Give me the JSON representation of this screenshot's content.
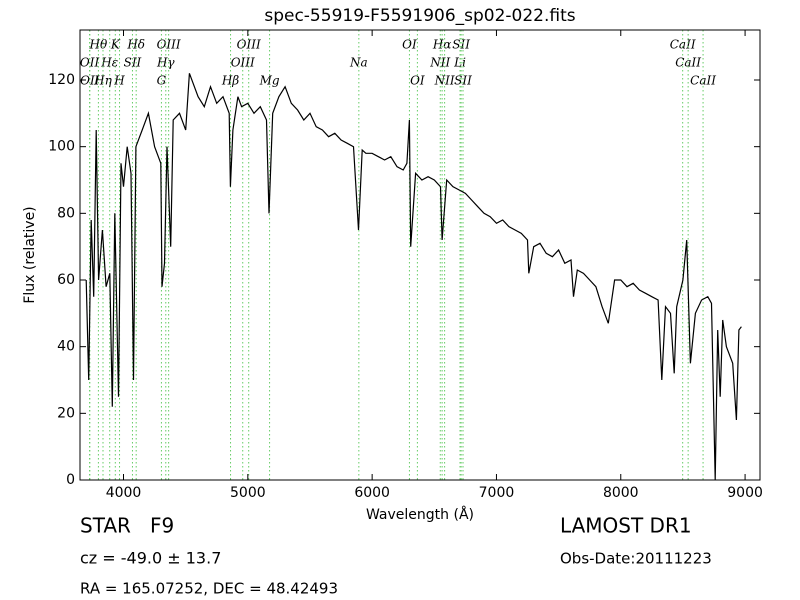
{
  "chart_data": {
    "type": "line",
    "title": "spec-55919-F5591906_sp02-022.fits",
    "x_label": "Wavelength (Å)",
    "y_label": "Flux (relative)",
    "xlim": [
      3650,
      9120
    ],
    "ylim": [
      0,
      135
    ],
    "xticks": [
      4000,
      5000,
      6000,
      7000,
      8000,
      9000
    ],
    "yticks": [
      0,
      20,
      40,
      60,
      80,
      100,
      120
    ],
    "color": "#000000",
    "line_color": "#66cc66",
    "x": [
      3700,
      3720,
      3740,
      3760,
      3780,
      3800,
      3830,
      3860,
      3890,
      3910,
      3930,
      3960,
      3980,
      4000,
      4030,
      4060,
      4080,
      4100,
      4150,
      4200,
      4250,
      4300,
      4310,
      4330,
      4350,
      4380,
      4400,
      4450,
      4500,
      4530,
      4600,
      4650,
      4700,
      4750,
      4800,
      4850,
      4860,
      4880,
      4920,
      4950,
      5000,
      5050,
      5100,
      5150,
      5170,
      5200,
      5250,
      5300,
      5350,
      5400,
      5450,
      5500,
      5550,
      5600,
      5650,
      5700,
      5750,
      5800,
      5850,
      5890,
      5920,
      5950,
      6000,
      6050,
      6100,
      6150,
      6200,
      6250,
      6280,
      6300,
      6310,
      6350,
      6400,
      6450,
      6500,
      6550,
      6563,
      6600,
      6650,
      6700,
      6750,
      6800,
      6850,
      6900,
      6950,
      7000,
      7050,
      7100,
      7150,
      7200,
      7250,
      7260,
      7300,
      7350,
      7400,
      7450,
      7500,
      7550,
      7600,
      7620,
      7650,
      7700,
      7750,
      7800,
      7850,
      7900,
      7950,
      8000,
      8050,
      8100,
      8150,
      8200,
      8250,
      8300,
      8330,
      8360,
      8400,
      8430,
      8450,
      8500,
      8530,
      8560,
      8600,
      8650,
      8700,
      8730,
      8760,
      8780,
      8800,
      8820,
      8850,
      8900,
      8930,
      8950,
      8970
    ],
    "values": [
      60,
      30,
      78,
      55,
      105,
      60,
      75,
      58,
      62,
      22,
      80,
      25,
      95,
      88,
      100,
      92,
      30,
      100,
      105,
      110,
      100,
      95,
      58,
      65,
      100,
      70,
      108,
      110,
      105,
      122,
      115,
      112,
      118,
      113,
      115,
      110,
      88,
      105,
      115,
      112,
      113,
      110,
      112,
      108,
      80,
      110,
      115,
      118,
      113,
      111,
      108,
      110,
      106,
      105,
      103,
      104,
      102,
      101,
      100,
      75,
      99,
      98,
      98,
      97,
      96,
      97,
      94,
      93,
      95,
      108,
      70,
      92,
      90,
      91,
      90,
      88,
      72,
      90,
      88,
      87,
      86,
      84,
      82,
      80,
      79,
      77,
      78,
      76,
      75,
      74,
      72,
      62,
      70,
      71,
      68,
      67,
      69,
      65,
      66,
      55,
      63,
      62,
      60,
      58,
      52,
      47,
      60,
      60,
      58,
      59,
      57,
      56,
      55,
      54,
      30,
      52,
      50,
      32,
      52,
      60,
      72,
      35,
      50,
      54,
      55,
      53,
      0,
      45,
      25,
      48,
      40,
      35,
      18,
      45,
      46
    ],
    "lines": [
      {
        "x": 3798,
        "label": "Hθ"
      },
      {
        "x": 3934,
        "label": "K"
      },
      {
        "x": 4102,
        "label": "Hδ"
      },
      {
        "x": 4363,
        "label": "OIII"
      },
      {
        "x": 5007,
        "label": "OIII"
      },
      {
        "x": 6300,
        "label": "OI"
      },
      {
        "x": 6563,
        "label": "Hα"
      },
      {
        "x": 6716,
        "label": "SII"
      },
      {
        "x": 8498,
        "label": "CaII"
      },
      {
        "x": 3727,
        "label": "OII"
      },
      {
        "x": 3889,
        "label": "Hε"
      },
      {
        "x": 4072,
        "label": "SII"
      },
      {
        "x": 4340,
        "label": "Hγ"
      },
      {
        "x": 4959,
        "label": "OIII"
      },
      {
        "x": 5893,
        "label": "Na"
      },
      {
        "x": 6548,
        "label": "NII"
      },
      {
        "x": 6707,
        "label": "Li"
      },
      {
        "x": 8542,
        "label": "CaII"
      },
      {
        "x": 3729,
        "label": "OII"
      },
      {
        "x": 3835,
        "label": "Hη"
      },
      {
        "x": 3968,
        "label": "H"
      },
      {
        "x": 4305,
        "label": "G"
      },
      {
        "x": 4861,
        "label": "Hβ"
      },
      {
        "x": 5175,
        "label": "Mg"
      },
      {
        "x": 6364,
        "label": "OI"
      },
      {
        "x": 6583,
        "label": "NII"
      },
      {
        "x": 6731,
        "label": "SII"
      },
      {
        "x": 8662,
        "label": "CaII"
      }
    ]
  },
  "footer": {
    "object": "STAR   F9",
    "survey": "LAMOST DR1",
    "cz": "cz = -49.0 ± 13.7",
    "obs_date": "Obs-Date:20111223",
    "coords": "RA = 165.07252, DEC = 48.42493"
  }
}
